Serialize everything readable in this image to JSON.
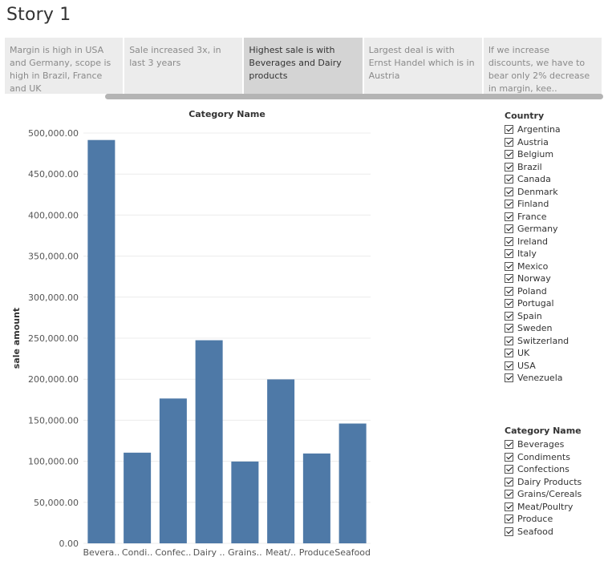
{
  "story": {
    "title": "Story 1",
    "points": [
      {
        "text": "Margin is high in USA and Germany, scope is high in Brazil, France and UK",
        "active": false
      },
      {
        "text": "Sale increased 3x, in last 3 years",
        "active": false
      },
      {
        "text": "Highest sale is with Beverages and Dairy products",
        "active": true
      },
      {
        "text": "Largest deal is with Ernst Handel which is in Austria",
        "active": false
      },
      {
        "text": "If we increase discounts, we have to bear only 2% decrease in margin, kee..",
        "active": false
      }
    ]
  },
  "chart_data": {
    "type": "bar",
    "title": "Category Name",
    "xlabel": "",
    "ylabel": "sale amount",
    "categories": [
      "Beverages",
      "Condiments",
      "Confections",
      "Dairy Products",
      "Grains/Cereals",
      "Meat/Poultry",
      "Produce",
      "Seafood"
    ],
    "category_labels": [
      "Bevera..",
      "Condi..",
      "Confec..",
      "Dairy ..",
      "Grains..",
      "Meat/..",
      "Produce",
      "Seafood"
    ],
    "values": [
      491500,
      110500,
      176500,
      247500,
      99700,
      199800,
      109500,
      146000
    ],
    "ylim": [
      0,
      500000
    ],
    "yticks": [
      0,
      50000,
      100000,
      150000,
      200000,
      250000,
      300000,
      350000,
      400000,
      450000,
      500000
    ],
    "ytick_labels": [
      "0.00",
      "50,000.00",
      "100,000.00",
      "150,000.00",
      "200,000.00",
      "250,000.00",
      "300,000.00",
      "350,000.00",
      "400,000.00",
      "450,000.00",
      "500,000.00"
    ],
    "bar_color": "#4e79a7",
    "grid": true
  },
  "filters": {
    "country": {
      "title": "Country",
      "items": [
        "Argentina",
        "Austria",
        "Belgium",
        "Brazil",
        "Canada",
        "Denmark",
        "Finland",
        "France",
        "Germany",
        "Ireland",
        "Italy",
        "Mexico",
        "Norway",
        "Poland",
        "Portugal",
        "Spain",
        "Sweden",
        "Switzerland",
        "UK",
        "USA",
        "Venezuela"
      ]
    },
    "category": {
      "title": "Category Name",
      "items": [
        "Beverages",
        "Condiments",
        "Confections",
        "Dairy Products",
        "Grains/Cereals",
        "Meat/Poultry",
        "Produce",
        "Seafood"
      ]
    }
  }
}
